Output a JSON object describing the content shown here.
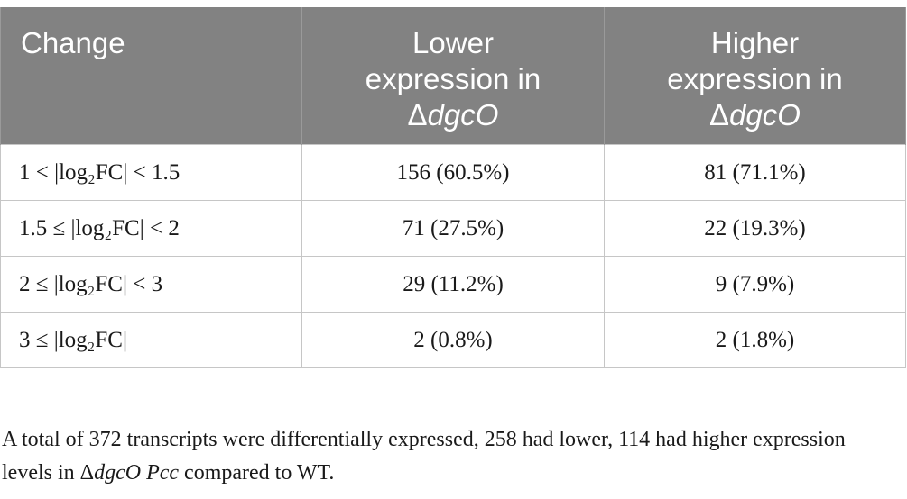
{
  "table": {
    "headers": {
      "change": "Change",
      "lower_line1": "Lower",
      "lower_line2": "expression in",
      "lower_line3_delta": "Δ",
      "lower_line3_gene": "dgcO",
      "higher_line1": "Higher",
      "higher_line2": "expression in",
      "higher_line3_delta": "Δ",
      "higher_line3_gene": "dgcO"
    },
    "rows": [
      {
        "change": "1 < |log₂FC| < 1.5",
        "lower": "156 (60.5%)",
        "higher": "81 (71.1%)"
      },
      {
        "change": "1.5 ≤ |log₂FC| < 2",
        "lower": "71 (27.5%)",
        "higher": "22 (19.3%)"
      },
      {
        "change": "2 ≤ |log₂FC| < 3",
        "lower": "29 (11.2%)",
        "higher": "9 (7.9%)"
      },
      {
        "change": "3 ≤ |log₂FC|",
        "lower": "2 (0.8%)",
        "higher": "2 (1.8%)"
      }
    ]
  },
  "footnote": {
    "part1": "A total of 372 transcripts were differentially expressed, 258 had lower, 114 had higher expression levels in Δ",
    "gene": "dgcO",
    "space": " ",
    "organism": "Pcc",
    "part2": " compared to WT."
  }
}
